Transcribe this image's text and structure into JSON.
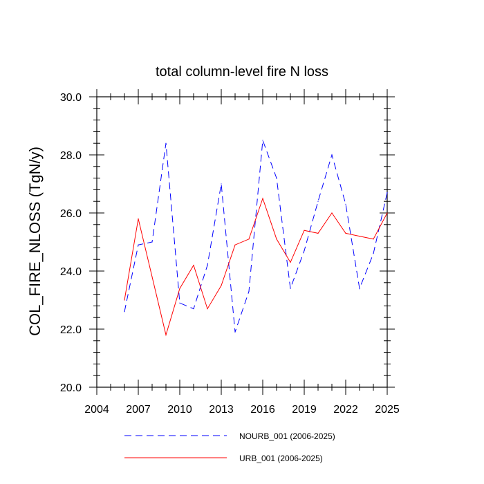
{
  "chart_data": {
    "type": "line",
    "title": "total column-level fire N loss",
    "xlabel": "",
    "ylabel": "COL_FIRE_NLOSS  (TgN/y)",
    "xlim": [
      2004,
      2025
    ],
    "ylim": [
      20.0,
      30.0
    ],
    "x_ticks": [
      2004,
      2007,
      2010,
      2013,
      2016,
      2019,
      2022,
      2025
    ],
    "y_ticks": [
      20.0,
      22.0,
      24.0,
      26.0,
      28.0,
      30.0
    ],
    "y_tick_labels": [
      "20.0",
      "22.0",
      "24.0",
      "26.0",
      "28.0",
      "30.0"
    ],
    "x": [
      2006,
      2007,
      2008,
      2009,
      2010,
      2011,
      2012,
      2013,
      2014,
      2015,
      2016,
      2017,
      2018,
      2019,
      2020,
      2021,
      2022,
      2023,
      2024,
      2025
    ],
    "series": [
      {
        "name": "NOURB_001 (2006-2025)",
        "color": "#0000ff",
        "style": "dashed",
        "values": [
          22.6,
          24.9,
          25.0,
          28.4,
          22.9,
          22.7,
          24.2,
          27.0,
          21.9,
          23.3,
          28.5,
          27.2,
          23.4,
          24.7,
          26.4,
          28.0,
          26.3,
          23.4,
          24.6,
          26.7
        ]
      },
      {
        "name": "URB_001 (2006-2025)",
        "color": "#ff0000",
        "style": "solid",
        "values": [
          23.0,
          25.8,
          23.8,
          21.8,
          23.4,
          24.2,
          22.7,
          23.5,
          24.9,
          25.1,
          26.5,
          25.1,
          24.3,
          25.4,
          25.3,
          26.0,
          25.3,
          25.2,
          25.1,
          26.0
        ]
      }
    ],
    "legend_position": "bottom"
  }
}
